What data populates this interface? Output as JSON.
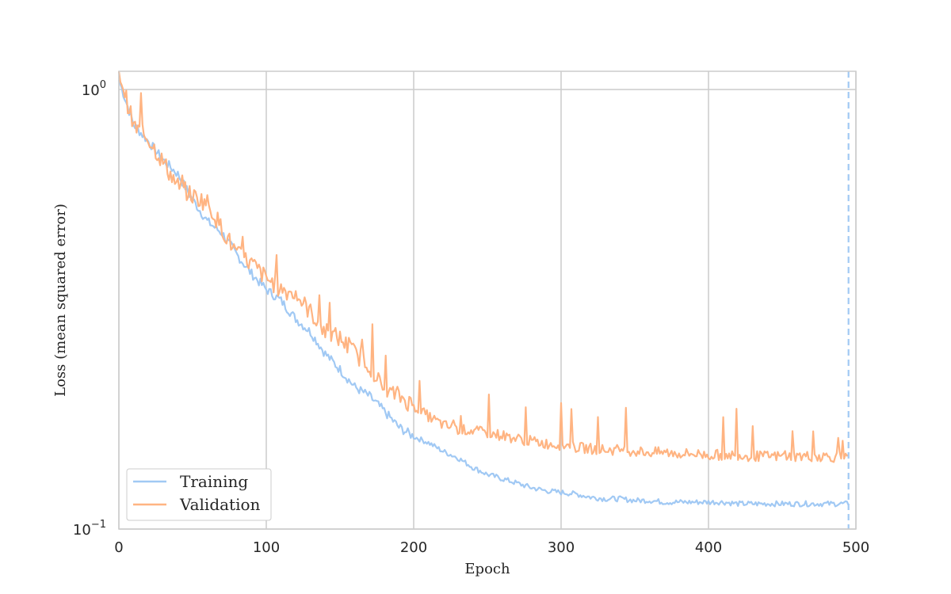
{
  "chart_data": {
    "type": "line",
    "xlabel": "Epoch",
    "ylabel": "Loss (mean squared error)",
    "xlim": [
      0,
      500
    ],
    "ylim": [
      0.1,
      1.1
    ],
    "yscale": "log",
    "grid": true,
    "legend_position": "lower-left",
    "x_ticks": [
      "0",
      "100",
      "200",
      "300",
      "400",
      "500"
    ],
    "y_ticks": [
      {
        "base": "10",
        "exp": "0"
      },
      {
        "base": "10",
        "exp": "−1"
      }
    ],
    "vertical_marker": {
      "x": 495,
      "style": "dashed",
      "color": "#a1c9f4"
    },
    "colors": {
      "training": "#a1c9f4",
      "validation": "#ffb482",
      "grid": "#cccccc",
      "spine": "#cccccc"
    },
    "series": [
      {
        "name": "Training",
        "color": "#a1c9f4",
        "x": [
          0,
          10,
          20,
          30,
          40,
          50,
          60,
          70,
          80,
          90,
          100,
          110,
          120,
          130,
          140,
          150,
          160,
          170,
          180,
          190,
          200,
          210,
          220,
          230,
          240,
          250,
          260,
          270,
          280,
          290,
          300,
          310,
          320,
          330,
          340,
          350,
          360,
          370,
          380,
          390,
          400,
          410,
          420,
          430,
          440,
          450,
          460,
          470,
          480,
          490,
          495
        ],
        "values": [
          1.05,
          0.83,
          0.76,
          0.69,
          0.64,
          0.56,
          0.5,
          0.47,
          0.42,
          0.38,
          0.35,
          0.33,
          0.3,
          0.28,
          0.25,
          0.23,
          0.21,
          0.2,
          0.185,
          0.17,
          0.162,
          0.157,
          0.15,
          0.145,
          0.138,
          0.133,
          0.13,
          0.127,
          0.124,
          0.122,
          0.121,
          0.12,
          0.118,
          0.117,
          0.117,
          0.116,
          0.116,
          0.115,
          0.115,
          0.115,
          0.115,
          0.115,
          0.114,
          0.114,
          0.114,
          0.114,
          0.114,
          0.114,
          0.114,
          0.114,
          0.114
        ]
      },
      {
        "name": "Validation",
        "color": "#ffb482",
        "x": [
          0,
          10,
          20,
          30,
          40,
          50,
          60,
          70,
          80,
          90,
          100,
          110,
          120,
          130,
          140,
          150,
          160,
          170,
          180,
          190,
          200,
          210,
          220,
          230,
          240,
          250,
          260,
          270,
          280,
          290,
          300,
          310,
          320,
          330,
          340,
          350,
          360,
          370,
          380,
          390,
          400,
          410,
          420,
          430,
          440,
          450,
          460,
          470,
          480,
          490,
          495
        ],
        "values": [
          1.1,
          0.82,
          0.77,
          0.68,
          0.6,
          0.57,
          0.55,
          0.48,
          0.42,
          0.4,
          0.37,
          0.35,
          0.34,
          0.31,
          0.28,
          0.27,
          0.25,
          0.235,
          0.205,
          0.2,
          0.19,
          0.18,
          0.172,
          0.168,
          0.167,
          0.165,
          0.163,
          0.16,
          0.158,
          0.156,
          0.155,
          0.153,
          0.152,
          0.151,
          0.151,
          0.15,
          0.149,
          0.149,
          0.148,
          0.148,
          0.147,
          0.147,
          0.147,
          0.146,
          0.146,
          0.146,
          0.146,
          0.146,
          0.146,
          0.145,
          0.144
        ]
      }
    ]
  }
}
